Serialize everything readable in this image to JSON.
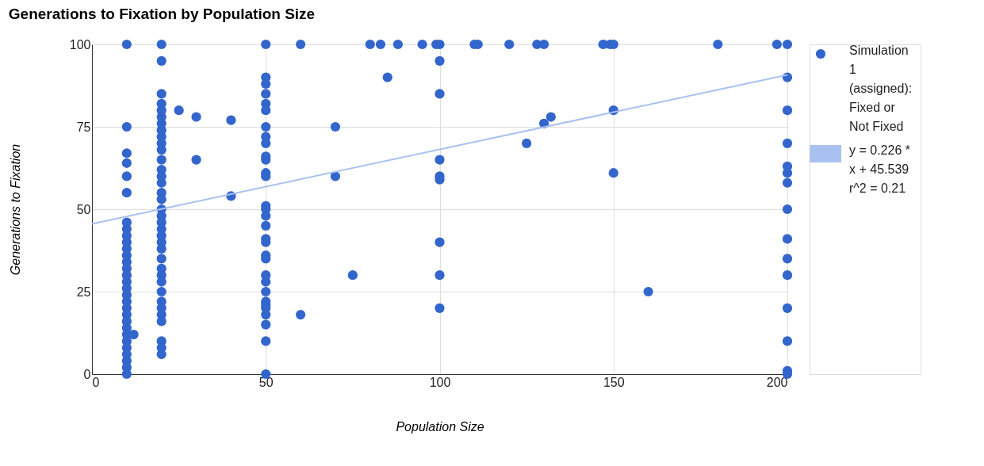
{
  "chart_data": {
    "type": "scatter",
    "title": "Generations to Fixation by Population Size",
    "xlabel": "Population Size",
    "ylabel": "Generations to Fixation",
    "xlim": [
      0,
      200
    ],
    "xticks": [
      0,
      50,
      100,
      150,
      200
    ],
    "ylim": [
      0,
      100
    ],
    "yticks": [
      0,
      25,
      50,
      75,
      100
    ],
    "grid": true,
    "legend": "right",
    "series": [
      {
        "name": "Simulation 1 (assigned): Fixed or Not Fixed",
        "color": "#3366cc",
        "marker": "circle",
        "x": [
          10,
          10,
          10,
          10,
          10,
          10,
          10,
          10,
          10,
          10,
          10,
          10,
          10,
          10,
          10,
          10,
          10,
          10,
          10,
          10,
          10,
          10,
          10,
          10,
          10,
          10,
          10,
          10,
          10,
          10,
          12,
          20,
          20,
          20,
          20,
          20,
          20,
          20,
          20,
          20,
          20,
          20,
          20,
          20,
          20,
          20,
          20,
          20,
          20,
          20,
          20,
          20,
          20,
          20,
          20,
          20,
          20,
          20,
          20,
          20,
          20,
          20,
          20,
          20,
          20,
          20,
          20,
          25,
          30,
          30,
          40,
          40,
          50,
          50,
          50,
          50,
          50,
          50,
          50,
          50,
          50,
          50,
          50,
          50,
          50,
          50,
          50,
          50,
          50,
          50,
          50,
          50,
          50,
          50,
          50,
          50,
          50,
          50,
          50,
          50,
          50,
          50,
          50,
          60,
          60,
          70,
          70,
          75,
          80,
          83,
          85,
          88,
          95,
          99,
          100,
          100,
          100,
          100,
          100,
          100,
          100,
          100,
          100,
          110,
          111,
          120,
          125,
          128,
          130,
          130,
          132,
          147,
          149,
          150,
          150,
          150,
          160,
          180,
          197,
          200,
          200,
          200,
          200,
          200,
          200,
          200,
          200,
          200,
          200,
          200,
          200,
          200,
          200,
          200
        ],
        "values": [
          100,
          75,
          67,
          64,
          60,
          55,
          46,
          44,
          42,
          40,
          38,
          36,
          34,
          32,
          30,
          28,
          26,
          24,
          22,
          20,
          18,
          16,
          14,
          12,
          10,
          8,
          6,
          4,
          2,
          0,
          12,
          100,
          95,
          85,
          82,
          80,
          78,
          76,
          74,
          72,
          70,
          68,
          65,
          62,
          60,
          58,
          55,
          53,
          50,
          48,
          46,
          44,
          42,
          40,
          38,
          35,
          32,
          30,
          28,
          25,
          22,
          20,
          18,
          16,
          10,
          8,
          6,
          80,
          78,
          65,
          77,
          54,
          100,
          90,
          88,
          85,
          82,
          80,
          75,
          72,
          70,
          66,
          65,
          61,
          60,
          51,
          50,
          48,
          45,
          41,
          40,
          36,
          35,
          30,
          28,
          25,
          22,
          21,
          20,
          18,
          15,
          10,
          0,
          100,
          18,
          75,
          60,
          30,
          100,
          100,
          90,
          100,
          100,
          100,
          100,
          95,
          85,
          65,
          60,
          59,
          40,
          30,
          20,
          100,
          100,
          100,
          70,
          100,
          100,
          76,
          78,
          100,
          100,
          100,
          80,
          61,
          25,
          100,
          100,
          100,
          90,
          80,
          70,
          63,
          61,
          58,
          50,
          41,
          35,
          30,
          20,
          10,
          1,
          0
        ]
      },
      {
        "name": "y = 0.226 * x + 45.539 r^2 = 0.21",
        "color": "#a9c1f0",
        "type": "line",
        "x": [
          0,
          200
        ],
        "values": [
          45.539,
          90.739
        ]
      }
    ]
  }
}
